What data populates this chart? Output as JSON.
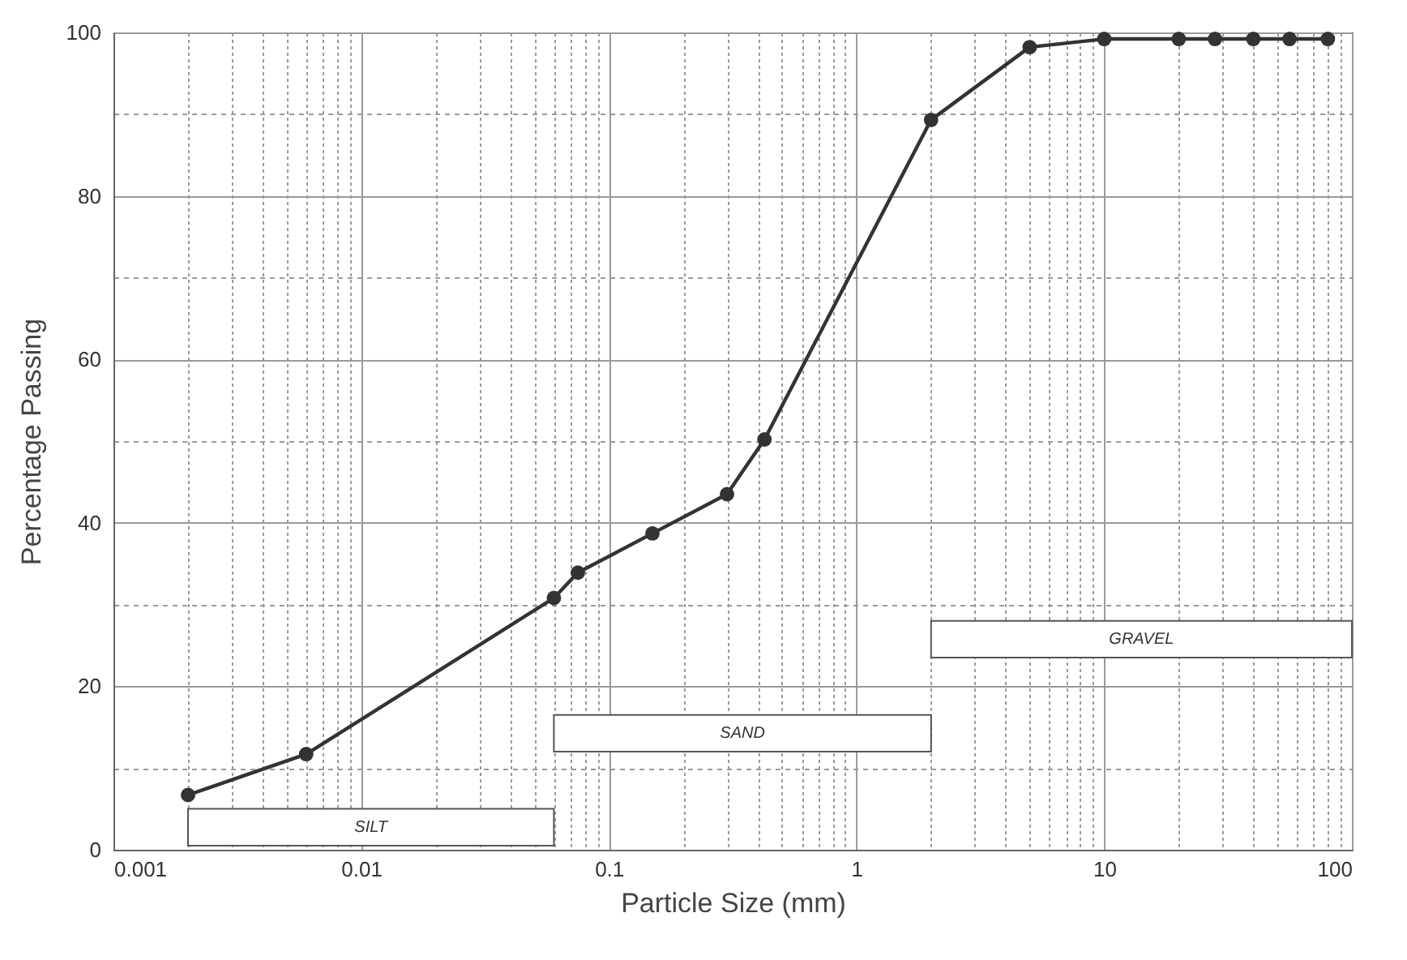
{
  "chart_data": {
    "type": "line",
    "xlabel": "Particle Size (mm)",
    "ylabel": "Percentage Passing",
    "x": [
      0.002,
      0.006,
      0.06,
      0.075,
      0.15,
      0.3,
      0.425,
      2,
      5,
      10,
      20,
      28,
      40,
      56,
      80
    ],
    "series": [
      {
        "color": "#333333",
        "values": [
          6.7,
          11.7,
          30.8,
          33.9,
          38.7,
          43.5,
          50.2,
          89.3,
          98.2,
          99.2,
          99.2,
          99.2,
          99.2,
          99.2,
          99.2
        ]
      }
    ],
    "xlim": [
      0.001,
      100
    ],
    "xticks": [
      0.001,
      0.01,
      0.1,
      1,
      10,
      100
    ],
    "ylim": [
      0,
      100
    ],
    "yticks": [
      0,
      20,
      40,
      60,
      80,
      100
    ],
    "log": "x",
    "grid": true,
    "marker": "circle",
    "line_style": "solid",
    "bands": [
      {
        "axis": "x",
        "from": 0.002,
        "to": 0.06,
        "label": "SILT"
      },
      {
        "axis": "x",
        "from": 0.06,
        "to": 2,
        "label": "SAND"
      },
      {
        "axis": "x",
        "from": 2,
        "to": 100,
        "label": "GRAVEL"
      }
    ]
  }
}
